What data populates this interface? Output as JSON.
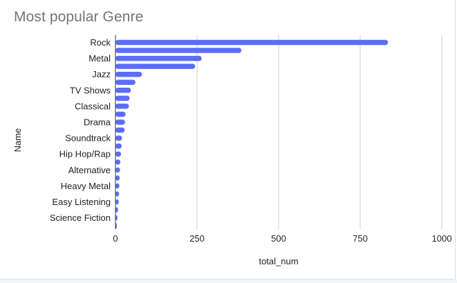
{
  "chart_data": {
    "type": "bar",
    "orientation": "horizontal",
    "title": "Most popular Genre",
    "xlabel": "total_num",
    "ylabel": "Name",
    "xlim": [
      0,
      1000
    ],
    "xticks": [
      0,
      250,
      500,
      750,
      1000
    ],
    "grid": true,
    "legend": "none",
    "bar_color": "#5b6ef5",
    "categories": [
      "Rock",
      "",
      "Metal",
      "",
      "Jazz",
      "",
      "TV Shows",
      "",
      "Classical",
      "",
      "Drama",
      "",
      "Soundtrack",
      "",
      "Hip Hop/Rap",
      "",
      "Alternative",
      "",
      "Heavy Metal",
      "",
      "Easy Listening",
      "",
      "Science Fiction",
      ""
    ],
    "values": [
      835,
      386,
      264,
      244,
      81,
      61,
      47,
      43,
      41,
      31,
      29,
      28,
      20,
      19,
      17,
      15,
      14,
      13,
      12,
      11,
      10,
      8,
      6,
      4
    ]
  }
}
